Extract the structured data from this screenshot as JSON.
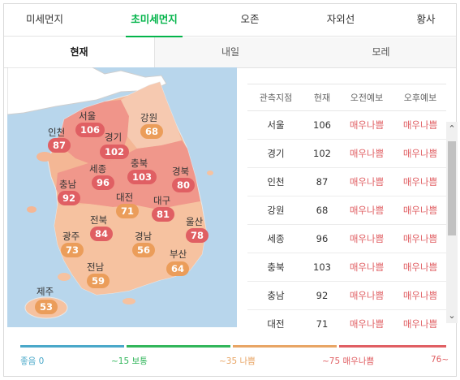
{
  "tabs": [
    "미세먼지",
    "초미세먼지",
    "오존",
    "자외선",
    "황사"
  ],
  "active_tab": 1,
  "subtabs": [
    "현재",
    "내일",
    "모레"
  ],
  "active_subtab": 0,
  "map": {
    "regions": [
      {
        "name": "서울",
        "value": "106",
        "level": "매우나쁨"
      },
      {
        "name": "인천",
        "value": "87",
        "level": "매우나쁨"
      },
      {
        "name": "경기",
        "value": "102",
        "level": "매우나쁨"
      },
      {
        "name": "강원",
        "value": "68",
        "level": "나쁨"
      },
      {
        "name": "세종",
        "value": "96",
        "level": "매우나쁨"
      },
      {
        "name": "충북",
        "value": "103",
        "level": "매우나쁨"
      },
      {
        "name": "경북",
        "value": "80",
        "level": "매우나쁨"
      },
      {
        "name": "충남",
        "value": "92",
        "level": "매우나쁨"
      },
      {
        "name": "대전",
        "value": "71",
        "level": "나쁨"
      },
      {
        "name": "대구",
        "value": "81",
        "level": "매우나쁨"
      },
      {
        "name": "전북",
        "value": "84",
        "level": "매우나쁨"
      },
      {
        "name": "울산",
        "value": "78",
        "level": "매우나쁨"
      },
      {
        "name": "광주",
        "value": "73",
        "level": "나쁨"
      },
      {
        "name": "경남",
        "value": "56",
        "level": "나쁨"
      },
      {
        "name": "부산",
        "value": "64",
        "level": "나쁨"
      },
      {
        "name": "전남",
        "value": "59",
        "level": "나쁨"
      },
      {
        "name": "제주",
        "value": "53",
        "level": "나쁨"
      }
    ]
  },
  "table": {
    "headers": [
      "관측지점",
      "현재",
      "오전예보",
      "오후예보"
    ],
    "rows": [
      {
        "name": "서울",
        "now": "106",
        "am": "매우나쁨",
        "pm": "매우나쁨"
      },
      {
        "name": "경기",
        "now": "102",
        "am": "매우나쁨",
        "pm": "매우나쁨"
      },
      {
        "name": "인천",
        "now": "87",
        "am": "매우나쁨",
        "pm": "매우나쁨"
      },
      {
        "name": "강원",
        "now": "68",
        "am": "매우나쁨",
        "pm": "매우나쁨"
      },
      {
        "name": "세종",
        "now": "96",
        "am": "매우나쁨",
        "pm": "매우나쁨"
      },
      {
        "name": "충북",
        "now": "103",
        "am": "매우나쁨",
        "pm": "매우나쁨"
      },
      {
        "name": "충남",
        "now": "92",
        "am": "매우나쁨",
        "pm": "매우나쁨"
      },
      {
        "name": "대전",
        "now": "71",
        "am": "매우나쁨",
        "pm": "매우나쁨"
      }
    ]
  },
  "scroll": {
    "up_icon": "chevron-up-icon",
    "down_icon": "chevron-down-icon"
  },
  "legend": {
    "items": [
      {
        "label": "좋음 0",
        "color": "#4aa8c9"
      },
      {
        "label": "~15 보통",
        "color": "#32b65b"
      },
      {
        "label": "~35 나쁨",
        "color": "#e8a565"
      },
      {
        "label": "~75 매우나쁨",
        "color": "#e05f63"
      },
      {
        "label": "76~",
        "color": "#e05f63"
      }
    ]
  },
  "colors": {
    "accent": "#03b44a",
    "very_bad": "#e05f63",
    "bad": "#eb9d5a",
    "sea": "#b8d6ec"
  }
}
